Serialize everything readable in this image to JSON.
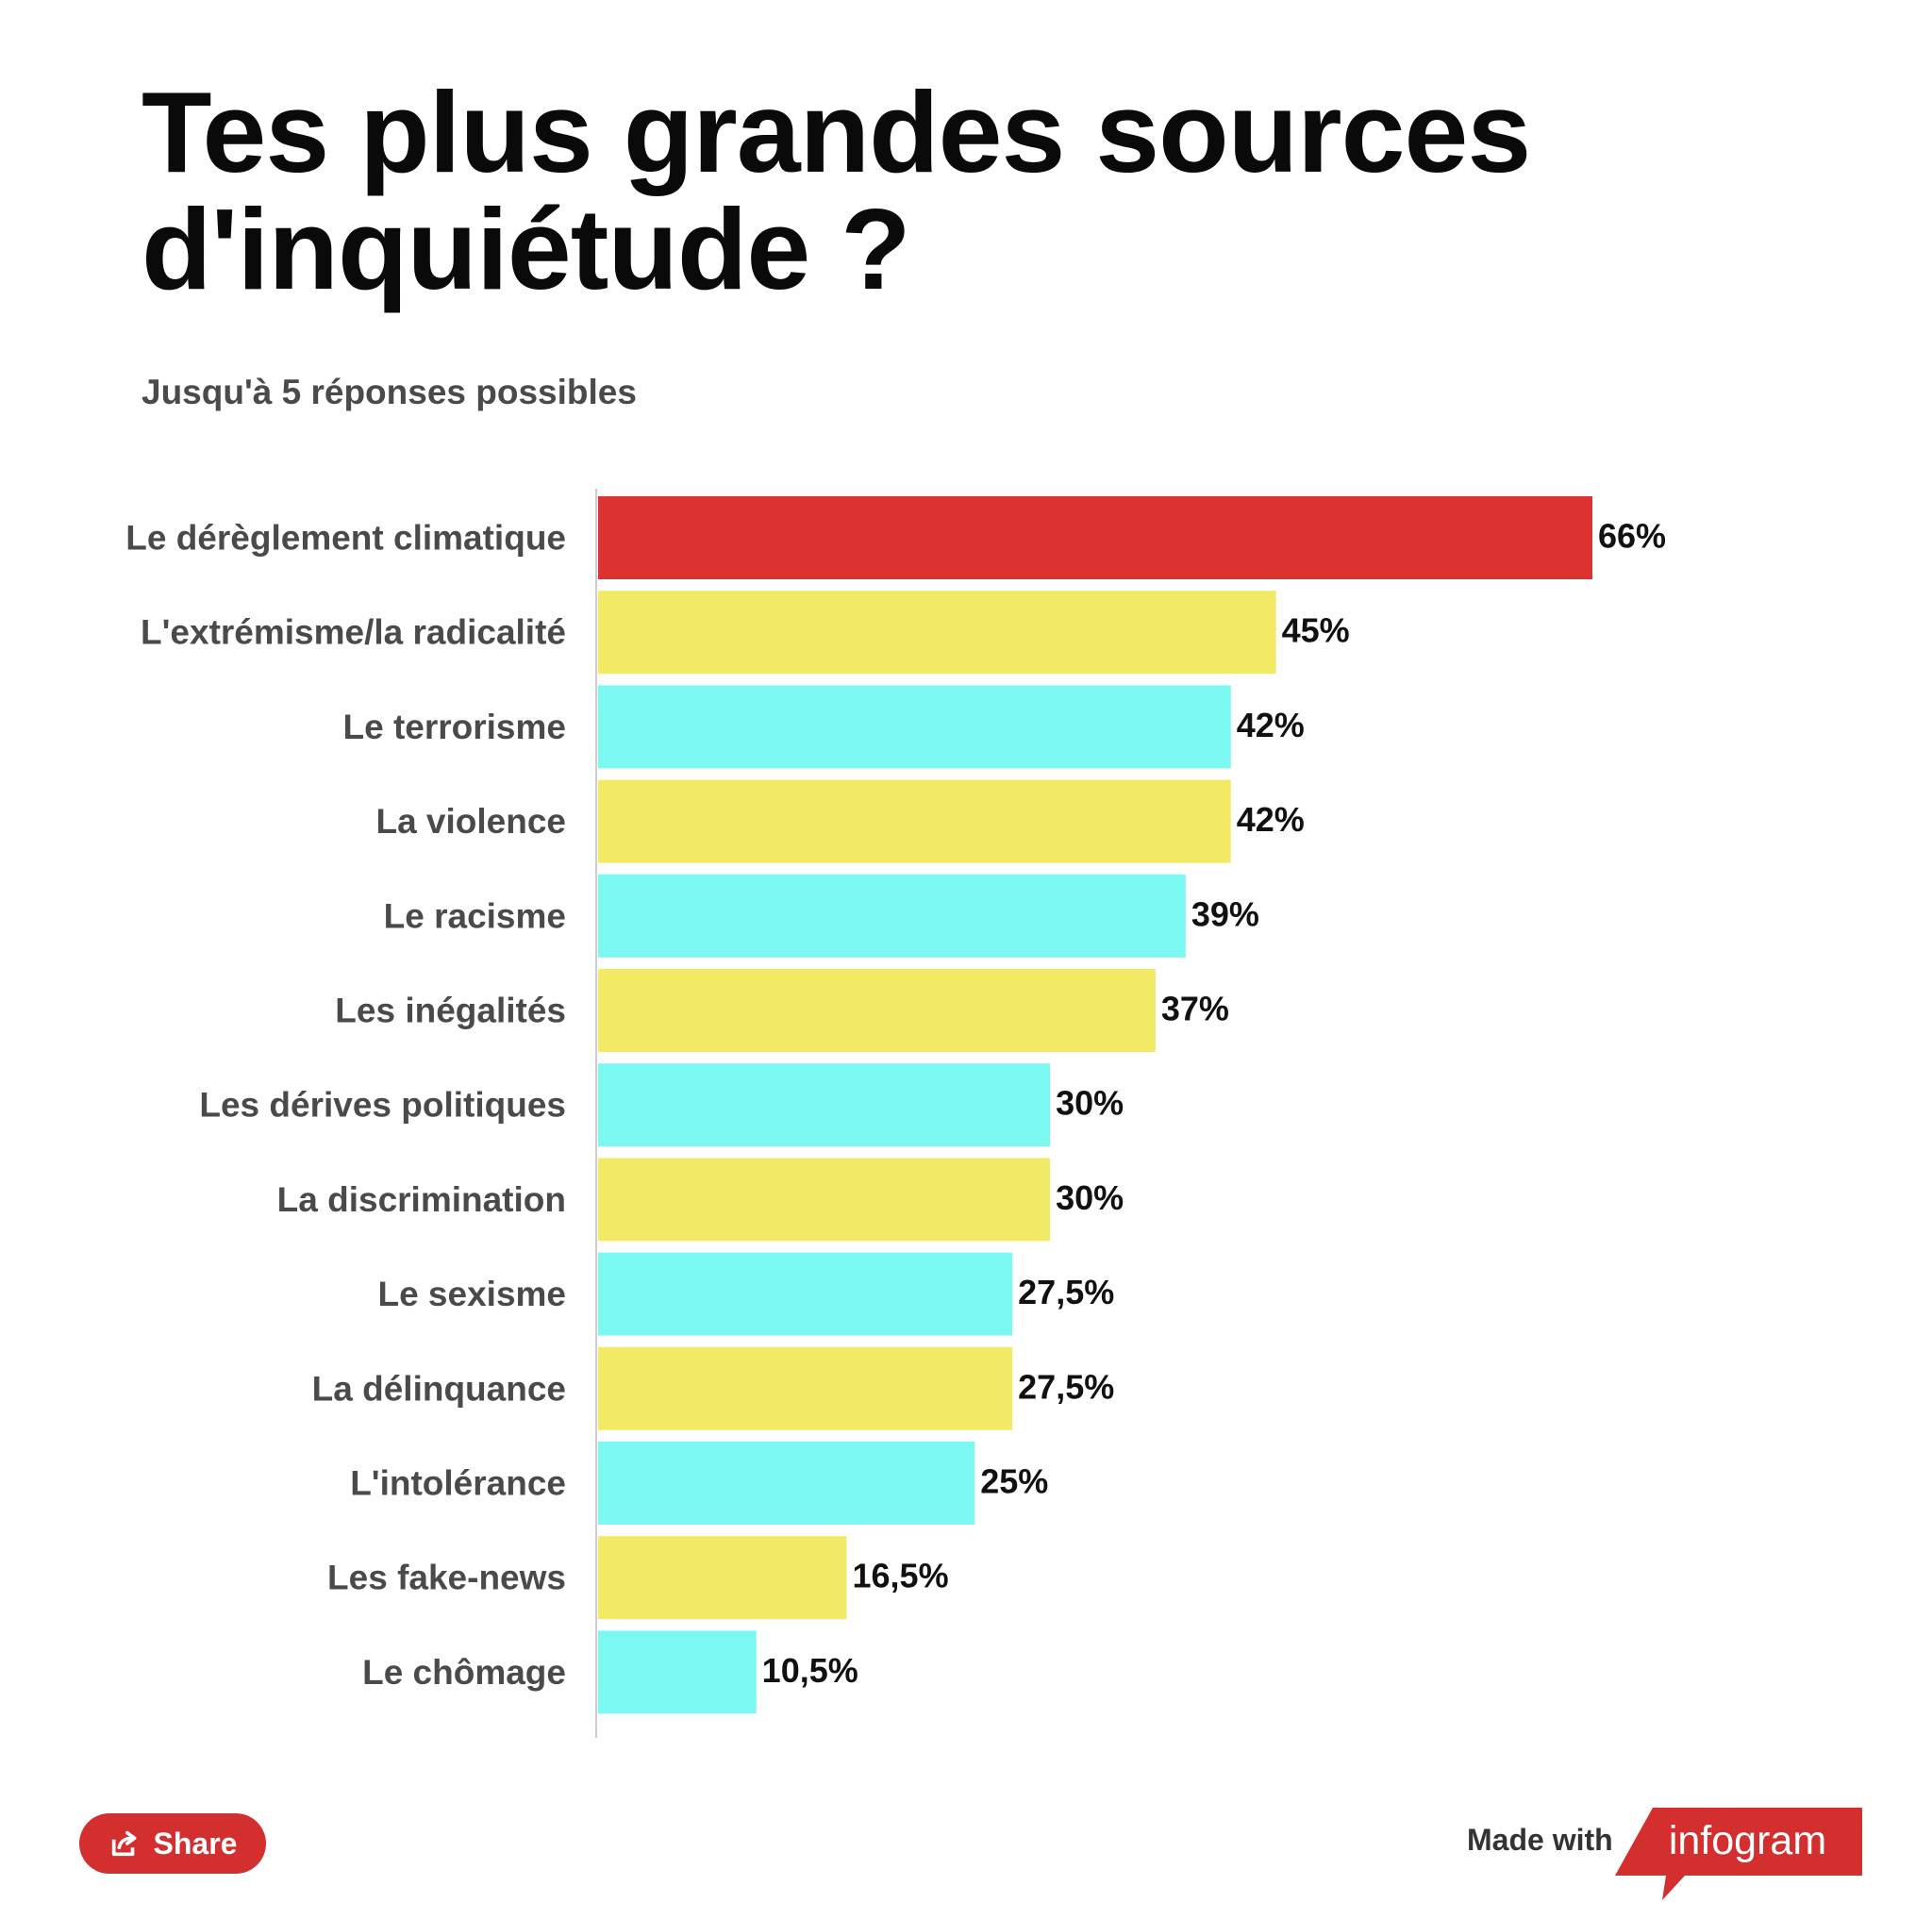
{
  "title": "Tes plus grandes sources d'inquiétude ?",
  "subtitle": "Jusqu'à 5 réponses possibles",
  "colors": {
    "highlight": "#dc3232",
    "yellow": "#f2e964",
    "cyan": "#7cf8f2",
    "brand": "#d32f2f"
  },
  "share": {
    "label": "Share",
    "icon": "share-icon"
  },
  "footer": {
    "made_with": "Made with",
    "brand": "infogram"
  },
  "chart_data": {
    "type": "bar",
    "orientation": "horizontal",
    "categories": [
      "Le dérèglement climatique",
      "L'extrémisme/la radicalité",
      "Le terrorisme",
      "La violence",
      "Le racisme",
      "Les inégalités",
      "Les dérives politiques",
      "La discrimination",
      "Le sexisme",
      "La délinquance",
      "L'intolérance",
      "Les fake-news",
      "Le chômage"
    ],
    "values": [
      66,
      45,
      42,
      42,
      39,
      37,
      30,
      30,
      27.5,
      27.5,
      25,
      16.5,
      10.5
    ],
    "value_labels": [
      "66%",
      "45%",
      "42%",
      "42%",
      "39%",
      "37%",
      "30%",
      "30%",
      "27,5%",
      "27,5%",
      "25%",
      "16,5%",
      "10,5%"
    ],
    "bar_colors": [
      "highlight",
      "yellow",
      "cyan",
      "yellow",
      "cyan",
      "yellow",
      "cyan",
      "yellow",
      "cyan",
      "yellow",
      "cyan",
      "yellow",
      "cyan"
    ],
    "xlim": [
      0,
      66
    ],
    "grid": false
  }
}
